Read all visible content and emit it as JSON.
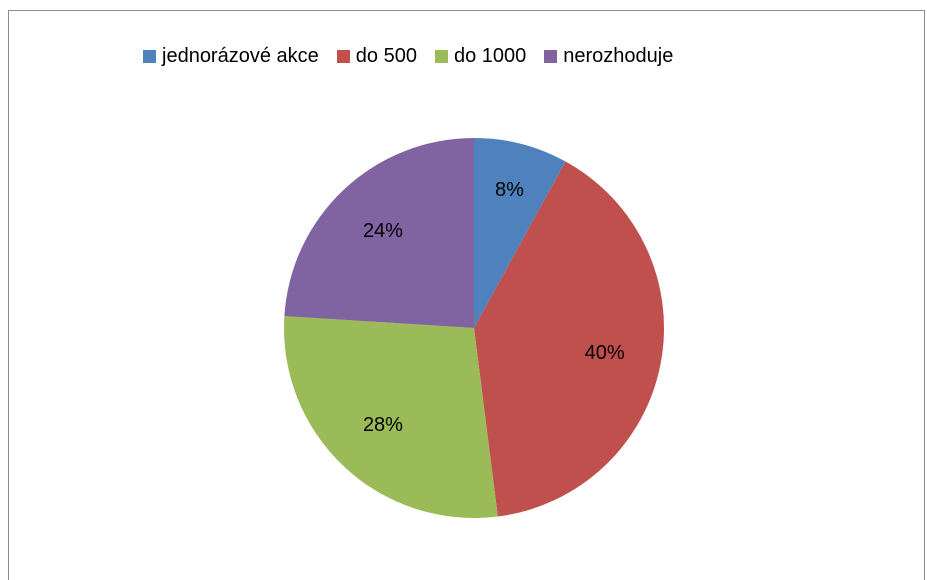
{
  "chart_data": {
    "type": "pie",
    "categories": [
      "jednorázové akce",
      "do 500",
      "do 1000",
      "nerozhoduje"
    ],
    "values": [
      8,
      40,
      28,
      24
    ],
    "labels": [
      "8%",
      "40%",
      "28%",
      "24%"
    ],
    "colors": [
      "#4f81bd",
      "#c0504d",
      "#9bbb59",
      "#8064a2"
    ],
    "legend_position": "top",
    "start_angle": "12 o'clock",
    "direction": "clockwise"
  }
}
